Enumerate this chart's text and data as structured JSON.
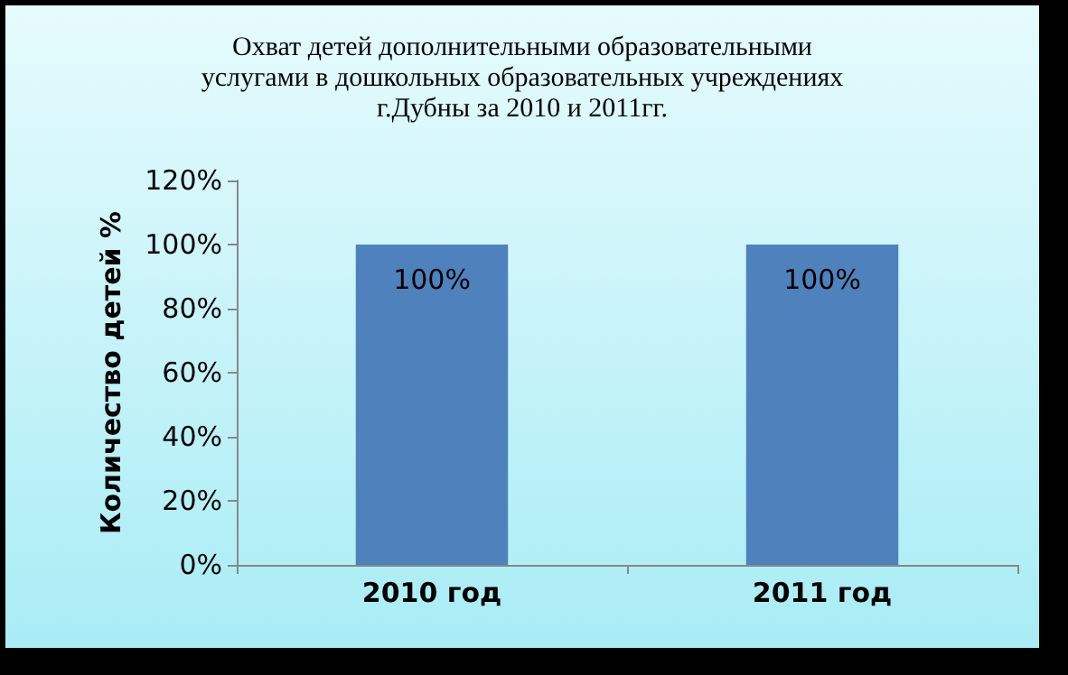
{
  "chart_data": {
    "type": "bar",
    "title": "Охват детей дополнительными образовательными\nуслугами в дошкольных образовательных учреждениях\nг.Дубны за 2010 и 2011гг.",
    "ylabel": "Количество детей %",
    "categories": [
      "2010 год",
      "2011 год"
    ],
    "values": [
      100,
      100
    ],
    "value_labels": [
      "100%",
      "100%"
    ],
    "color": "#4f81bd",
    "ylim": [
      0,
      120
    ],
    "yticks": [
      {
        "value": 0,
        "label": "0%"
      },
      {
        "value": 20,
        "label": "20%"
      },
      {
        "value": 40,
        "label": "40%"
      },
      {
        "value": 60,
        "label": "60%"
      },
      {
        "value": 80,
        "label": "80%"
      },
      {
        "value": 100,
        "label": "100%"
      },
      {
        "value": 120,
        "label": "120%"
      }
    ],
    "grid": false
  }
}
